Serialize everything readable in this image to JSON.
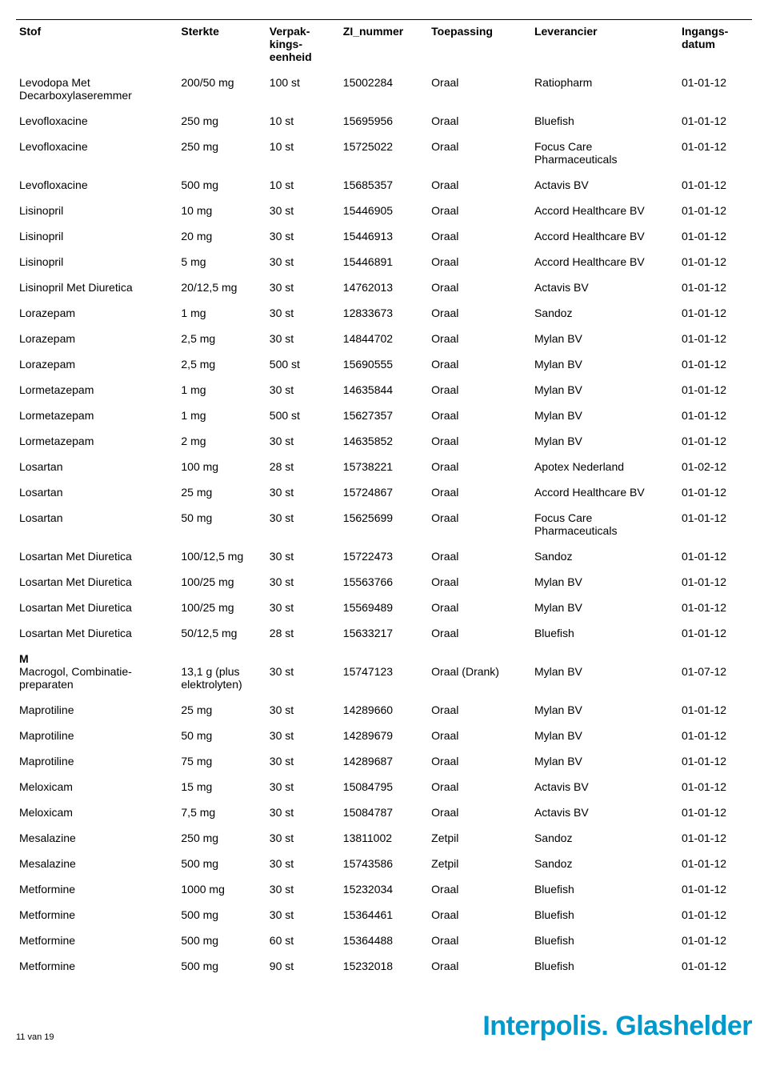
{
  "columns": [
    {
      "key": "stof",
      "label": "Stof"
    },
    {
      "key": "sterkte",
      "label": "Sterkte"
    },
    {
      "key": "verp",
      "label": "Verpak-\nkings-\neenheid"
    },
    {
      "key": "zi",
      "label": "ZI_nummer"
    },
    {
      "key": "toepassing",
      "label": "Toepassing"
    },
    {
      "key": "leverancier",
      "label": "Leverancier"
    },
    {
      "key": "datum",
      "label": "Ingangs-\ndatum"
    }
  ],
  "rows": [
    {
      "stof": "Levodopa Met\nDecarboxylaseremmer",
      "sterkte": "200/50 mg",
      "verp": "100 st",
      "zi": "15002284",
      "toepassing": "Oraal",
      "leverancier": "Ratiopharm",
      "datum": "01-01-12"
    },
    {
      "stof": "Levofloxacine",
      "sterkte": "250 mg",
      "verp": "10 st",
      "zi": "15695956",
      "toepassing": "Oraal",
      "leverancier": "Bluefish",
      "datum": "01-01-12"
    },
    {
      "stof": "Levofloxacine",
      "sterkte": "250 mg",
      "verp": "10 st",
      "zi": "15725022",
      "toepassing": "Oraal",
      "leverancier": "Focus Care\nPharmaceuticals",
      "datum": "01-01-12"
    },
    {
      "stof": "Levofloxacine",
      "sterkte": "500 mg",
      "verp": "10 st",
      "zi": "15685357",
      "toepassing": "Oraal",
      "leverancier": "Actavis BV",
      "datum": "01-01-12"
    },
    {
      "stof": "Lisinopril",
      "sterkte": "10 mg",
      "verp": "30 st",
      "zi": "15446905",
      "toepassing": "Oraal",
      "leverancier": "Accord Healthcare BV",
      "datum": "01-01-12"
    },
    {
      "stof": "Lisinopril",
      "sterkte": "20 mg",
      "verp": "30 st",
      "zi": "15446913",
      "toepassing": "Oraal",
      "leverancier": "Accord Healthcare BV",
      "datum": "01-01-12"
    },
    {
      "stof": "Lisinopril",
      "sterkte": "5 mg",
      "verp": "30 st",
      "zi": "15446891",
      "toepassing": "Oraal",
      "leverancier": "Accord Healthcare BV",
      "datum": "01-01-12"
    },
    {
      "stof": "Lisinopril Met Diuretica",
      "sterkte": "20/12,5 mg",
      "verp": "30 st",
      "zi": "14762013",
      "toepassing": "Oraal",
      "leverancier": "Actavis BV",
      "datum": "01-01-12"
    },
    {
      "stof": "Lorazepam",
      "sterkte": "1 mg",
      "verp": "30 st",
      "zi": "12833673",
      "toepassing": "Oraal",
      "leverancier": "Sandoz",
      "datum": "01-01-12"
    },
    {
      "stof": "Lorazepam",
      "sterkte": "2,5 mg",
      "verp": "30 st",
      "zi": "14844702",
      "toepassing": "Oraal",
      "leverancier": "Mylan BV",
      "datum": "01-01-12"
    },
    {
      "stof": "Lorazepam",
      "sterkte": "2,5 mg",
      "verp": "500 st",
      "zi": "15690555",
      "toepassing": "Oraal",
      "leverancier": "Mylan BV",
      "datum": "01-01-12"
    },
    {
      "stof": "Lormetazepam",
      "sterkte": "1 mg",
      "verp": "30 st",
      "zi": "14635844",
      "toepassing": "Oraal",
      "leverancier": "Mylan BV",
      "datum": "01-01-12"
    },
    {
      "stof": "Lormetazepam",
      "sterkte": "1 mg",
      "verp": "500 st",
      "zi": "15627357",
      "toepassing": "Oraal",
      "leverancier": "Mylan BV",
      "datum": "01-01-12"
    },
    {
      "stof": "Lormetazepam",
      "sterkte": "2 mg",
      "verp": "30 st",
      "zi": "14635852",
      "toepassing": "Oraal",
      "leverancier": "Mylan BV",
      "datum": "01-01-12"
    },
    {
      "stof": "Losartan",
      "sterkte": "100 mg",
      "verp": "28 st",
      "zi": "15738221",
      "toepassing": "Oraal",
      "leverancier": "Apotex Nederland",
      "datum": "01-02-12"
    },
    {
      "stof": "Losartan",
      "sterkte": "25 mg",
      "verp": "30 st",
      "zi": "15724867",
      "toepassing": "Oraal",
      "leverancier": "Accord Healthcare BV",
      "datum": "01-01-12"
    },
    {
      "stof": "Losartan",
      "sterkte": "50 mg",
      "verp": "30 st",
      "zi": "15625699",
      "toepassing": "Oraal",
      "leverancier": "Focus Care\nPharmaceuticals",
      "datum": "01-01-12"
    },
    {
      "stof": "Losartan Met Diuretica",
      "sterkte": "100/12,5 mg",
      "verp": "30 st",
      "zi": "15722473",
      "toepassing": "Oraal",
      "leverancier": "Sandoz",
      "datum": "01-01-12"
    },
    {
      "stof": "Losartan Met Diuretica",
      "sterkte": "100/25 mg",
      "verp": "30 st",
      "zi": "15563766",
      "toepassing": "Oraal",
      "leverancier": "Mylan BV",
      "datum": "01-01-12"
    },
    {
      "stof": "Losartan Met Diuretica",
      "sterkte": "100/25 mg",
      "verp": "30 st",
      "zi": "15569489",
      "toepassing": "Oraal",
      "leverancier": "Mylan BV",
      "datum": "01-01-12"
    },
    {
      "stof": "Losartan Met Diuretica",
      "sterkte": "50/12,5 mg",
      "verp": "28 st",
      "zi": "15633217",
      "toepassing": "Oraal",
      "leverancier": "Bluefish",
      "datum": "01-01-12"
    },
    {
      "section": "M"
    },
    {
      "stof": "Macrogol, Combinatie-\npreparaten",
      "sterkte": "13,1 g (plus\nelektrolyten)",
      "verp": "30 st",
      "zi": "15747123",
      "toepassing": "Oraal (Drank)",
      "leverancier": "Mylan BV",
      "datum": "01-07-12"
    },
    {
      "stof": "Maprotiline",
      "sterkte": "25 mg",
      "verp": "30 st",
      "zi": "14289660",
      "toepassing": "Oraal",
      "leverancier": "Mylan BV",
      "datum": "01-01-12"
    },
    {
      "stof": "Maprotiline",
      "sterkte": "50 mg",
      "verp": "30 st",
      "zi": "14289679",
      "toepassing": "Oraal",
      "leverancier": "Mylan BV",
      "datum": "01-01-12"
    },
    {
      "stof": "Maprotiline",
      "sterkte": "75 mg",
      "verp": "30 st",
      "zi": "14289687",
      "toepassing": "Oraal",
      "leverancier": "Mylan BV",
      "datum": "01-01-12"
    },
    {
      "stof": "Meloxicam",
      "sterkte": "15 mg",
      "verp": "30 st",
      "zi": "15084795",
      "toepassing": "Oraal",
      "leverancier": "Actavis BV",
      "datum": "01-01-12"
    },
    {
      "stof": "Meloxicam",
      "sterkte": "7,5 mg",
      "verp": "30 st",
      "zi": "15084787",
      "toepassing": "Oraal",
      "leverancier": "Actavis BV",
      "datum": "01-01-12"
    },
    {
      "stof": "Mesalazine",
      "sterkte": "250 mg",
      "verp": "30 st",
      "zi": "13811002",
      "toepassing": "Zetpil",
      "leverancier": "Sandoz",
      "datum": "01-01-12"
    },
    {
      "stof": "Mesalazine",
      "sterkte": "500 mg",
      "verp": "30 st",
      "zi": "15743586",
      "toepassing": "Zetpil",
      "leverancier": "Sandoz",
      "datum": "01-01-12"
    },
    {
      "stof": "Metformine",
      "sterkte": "1000 mg",
      "verp": "30 st",
      "zi": "15232034",
      "toepassing": "Oraal",
      "leverancier": "Bluefish",
      "datum": "01-01-12"
    },
    {
      "stof": "Metformine",
      "sterkte": "500 mg",
      "verp": "30 st",
      "zi": "15364461",
      "toepassing": "Oraal",
      "leverancier": "Bluefish",
      "datum": "01-01-12"
    },
    {
      "stof": "Metformine",
      "sterkte": "500 mg",
      "verp": "60 st",
      "zi": "15364488",
      "toepassing": "Oraal",
      "leverancier": "Bluefish",
      "datum": "01-01-12"
    },
    {
      "stof": "Metformine",
      "sterkte": "500 mg",
      "verp": "90 st",
      "zi": "15232018",
      "toepassing": "Oraal",
      "leverancier": "Bluefish",
      "datum": "01-01-12"
    }
  ],
  "footer": {
    "page": "11 van 19",
    "brand": "Interpolis. Glashelder"
  }
}
